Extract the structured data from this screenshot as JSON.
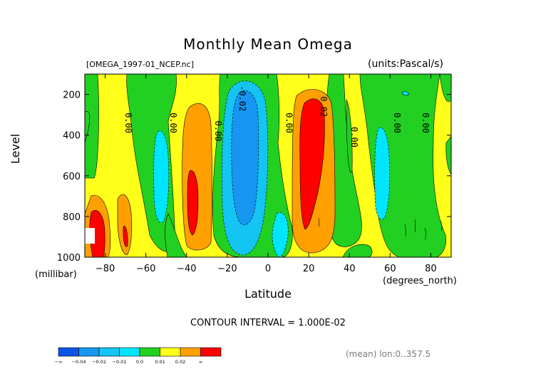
{
  "chart_data": {
    "type": "heatmap",
    "title": "Monthly Mean Omega",
    "file_label": "[OMEGA_1997-01_NCEP.nc]",
    "units_label": "(units:Pascal/s)",
    "xlabel": "Latitude",
    "x_units": "(degrees_north)",
    "ylabel": "Level",
    "y_units": "(millibar)",
    "xlim": [
      -90,
      90
    ],
    "ylim": [
      1000,
      100
    ],
    "x_ticks": [
      "-80",
      "-60",
      "-40",
      "-20",
      "0",
      "20",
      "40",
      "60",
      "80"
    ],
    "x_tick_values": [
      -80,
      -60,
      -40,
      -20,
      0,
      20,
      40,
      60,
      80
    ],
    "y_ticks": [
      "200",
      "400",
      "600",
      "800",
      "1000"
    ],
    "y_tick_values": [
      200,
      400,
      600,
      800,
      1000
    ],
    "contour_interval_text": "CONTOUR INTERVAL = 1.000E-02",
    "footer_text": "(mean) lon:0..357.5",
    "contour_labels": [
      {
        "text": "0.00",
        "lat": -70,
        "level": 340
      },
      {
        "text": "0.00",
        "lat": -48,
        "level": 340
      },
      {
        "text": "0.00",
        "lat": -26,
        "level": 380
      },
      {
        "text": "-0.02",
        "lat": -14,
        "level": 220
      },
      {
        "text": "0.00",
        "lat": 9,
        "level": 340
      },
      {
        "text": "0.02",
        "lat": 26,
        "level": 260
      },
      {
        "text": "0.00",
        "lat": 41,
        "level": 410
      },
      {
        "text": "0.00",
        "lat": 62,
        "level": 340
      },
      {
        "text": "0.00",
        "lat": 76,
        "level": 340
      }
    ],
    "colorbar": {
      "colors": [
        "#0b55e6",
        "#1696f0",
        "#14c4f2",
        "#00e5ff",
        "#22d022",
        "#ffff1a",
        "#ffa000",
        "#ff0000"
      ],
      "labels": [
        "-∞",
        "-0.04",
        "-0.02",
        "-0.01",
        "0.0",
        "0.01",
        "0.02",
        "∞"
      ]
    },
    "color_levels": {
      "very_negative": "#0b55e6",
      "strong_negative": "#1696f0",
      "negative": "#14c4f2",
      "weak_negative": "#00e5ff",
      "near_zero": "#22d022",
      "weak_positive": "#ffff1a",
      "positive": "#ffa000",
      "strong_positive": "#ff0000"
    }
  }
}
